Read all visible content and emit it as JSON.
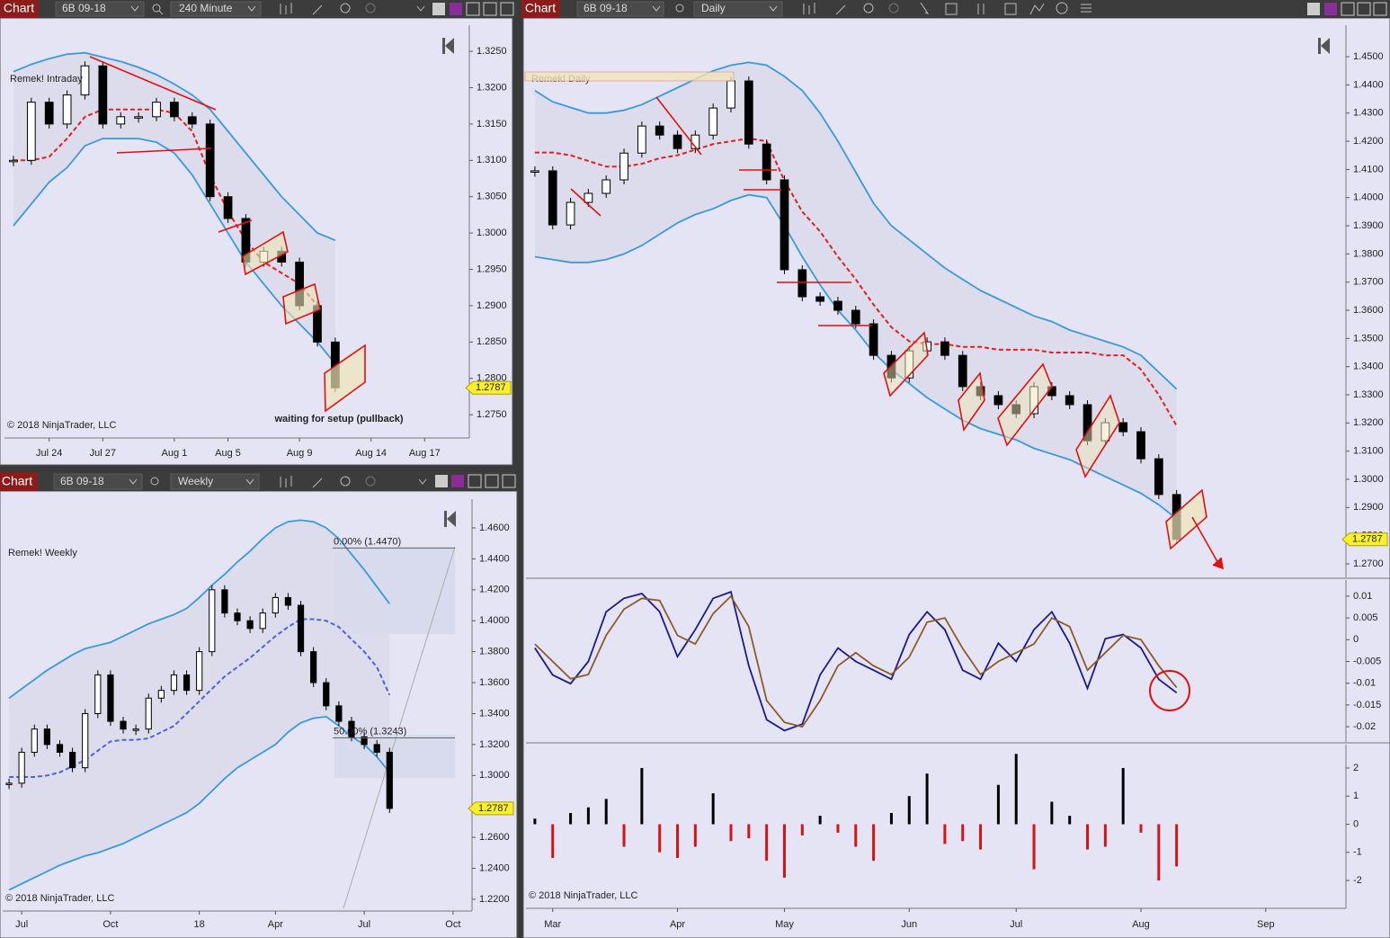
{
  "windows": [
    {
      "label": "Chart",
      "instrument": "6B 09-18",
      "interval": "240 Minute"
    },
    {
      "label": "Chart",
      "instrument": "6B 09-18",
      "interval": "Weekly"
    },
    {
      "label": "Chart",
      "instrument": "6B 09-18",
      "interval": "Daily"
    }
  ],
  "chart_data": [
    {
      "type": "candlestick",
      "title": "Remek! Intraday",
      "copyright": "© 2018 NinjaTrader, LLC",
      "annotation": "waiting for setup (pullback)",
      "categories": [
        null,
        null,
        "Jul 24",
        null,
        null,
        "Jul 27",
        null,
        null,
        null,
        "Aug 1",
        null,
        null,
        "Aug 5",
        null,
        null,
        null,
        "Aug 9",
        null,
        null,
        null,
        "Aug 14",
        null,
        null,
        "Aug 17",
        null,
        null
      ],
      "band_fill": "#d9d9ea",
      "last_price": 1.2787,
      "ylim": [
        1.2718,
        1.3286
      ],
      "yticks": [
        {
          "value": 1.275,
          "label": "1.2750"
        },
        {
          "value": 1.28,
          "label": "1.2800"
        },
        {
          "value": 1.285,
          "label": "1.2850"
        },
        {
          "value": 1.29,
          "label": "1.2900"
        },
        {
          "value": 1.295,
          "label": "1.2950"
        },
        {
          "value": 1.3,
          "label": "1.3000"
        },
        {
          "value": 1.305,
          "label": "1.3050"
        },
        {
          "value": 1.31,
          "label": "1.3100"
        },
        {
          "value": 1.315,
          "label": "1.3150"
        },
        {
          "value": 1.32,
          "label": "1.3200"
        },
        {
          "value": 1.325,
          "label": "1.3250"
        }
      ],
      "series": [
        {
          "style": "band",
          "color": "#3a9ad9",
          "values": [
            1.3222,
            1.3232,
            1.324,
            1.3246,
            1.3248,
            1.3242,
            1.3236,
            1.3228,
            1.3218,
            1.3205,
            1.319,
            1.317,
            1.314,
            1.311,
            1.308,
            1.305,
            1.3025,
            1.3,
            1.299,
            null,
            null,
            null,
            null,
            null,
            null,
            null
          ]
        },
        {
          "style": "band",
          "color": "#3a9ad9",
          "values": [
            1.301,
            1.304,
            1.307,
            1.309,
            1.312,
            1.313,
            1.313,
            1.313,
            1.3125,
            1.311,
            1.308,
            1.304,
            1.3,
            1.296,
            1.293,
            1.29,
            1.2875,
            1.285,
            1.282,
            null,
            null,
            null,
            null,
            null,
            null,
            null
          ]
        },
        {
          "style": "dashed",
          "color": "#e02020",
          "values": [
            1.31,
            1.31,
            1.3105,
            1.313,
            1.316,
            1.317,
            1.317,
            1.317,
            1.317,
            1.3165,
            1.314,
            1.308,
            1.303,
            1.299,
            1.296,
            1.2945,
            1.293,
            1.29,
            null,
            null,
            null,
            null,
            null,
            null,
            null,
            null
          ]
        },
        {
          "style": "candles",
          "color": "#000000",
          "values": [
            1.31,
            1.318,
            1.315,
            1.319,
            1.323,
            1.315,
            1.316,
            1.316,
            1.318,
            1.316,
            1.315,
            1.305,
            1.302,
            1.296,
            1.2975,
            1.296,
            1.29,
            1.285,
            1.2787,
            null,
            null,
            null,
            null,
            null,
            null,
            null
          ]
        }
      ]
    },
    {
      "type": "candlestick",
      "title": "Remek! Weekly",
      "copyright": "© 2018 NinjaTrader, LLC",
      "categories": [
        null,
        "Jul",
        null,
        null,
        null,
        null,
        null,
        null,
        "Oct",
        null,
        null,
        null,
        null,
        null,
        null,
        "18",
        null,
        null,
        null,
        null,
        null,
        "Apr",
        null,
        null,
        null,
        null,
        null,
        null,
        "Jul",
        null,
        null,
        null,
        null,
        null,
        null,
        "Oct",
        null
      ],
      "band_fill": "#d9d9ea",
      "last_price": 1.2787,
      "ylim": [
        1.2124,
        1.4786
      ],
      "fib_levels": [
        {
          "value": 1.447,
          "label": "0.00% (1.4470)"
        },
        {
          "value": 1.3243,
          "label": "50.00% (1.3243)"
        }
      ],
      "yticks": [
        {
          "value": 1.22,
          "label": "1.2200"
        },
        {
          "value": 1.24,
          "label": "1.2400"
        },
        {
          "value": 1.26,
          "label": "1.2600"
        },
        {
          "value": 1.28,
          "label": "1.2800"
        },
        {
          "value": 1.3,
          "label": "1.3000"
        },
        {
          "value": 1.32,
          "label": "1.3200"
        },
        {
          "value": 1.34,
          "label": "1.3400"
        },
        {
          "value": 1.36,
          "label": "1.3600"
        },
        {
          "value": 1.38,
          "label": "1.3800"
        },
        {
          "value": 1.4,
          "label": "1.4000"
        },
        {
          "value": 1.42,
          "label": "1.4200"
        },
        {
          "value": 1.44,
          "label": "1.4400"
        },
        {
          "value": 1.46,
          "label": "1.4600"
        }
      ],
      "series": [
        {
          "style": "band",
          "color": "#3a9ad9",
          "values": [
            1.35,
            1.356,
            1.362,
            1.368,
            1.373,
            1.378,
            1.382,
            1.384,
            1.386,
            1.39,
            1.394,
            1.398,
            1.401,
            1.404,
            1.408,
            1.415,
            1.423,
            1.43,
            1.438,
            1.445,
            1.453,
            1.46,
            1.464,
            1.465,
            1.464,
            1.46,
            1.453,
            1.443,
            1.433,
            1.422,
            1.411,
            null,
            null,
            null,
            null,
            null,
            null
          ]
        },
        {
          "style": "band",
          "color": "#3a9ad9",
          "values": [
            1.226,
            1.23,
            1.234,
            1.238,
            1.242,
            1.245,
            1.248,
            1.25,
            1.253,
            1.256,
            1.26,
            1.264,
            1.268,
            1.272,
            1.276,
            1.282,
            1.29,
            1.298,
            1.305,
            1.31,
            1.315,
            1.32,
            1.328,
            1.334,
            1.337,
            1.338,
            1.332,
            1.325,
            1.32,
            1.312,
            1.302,
            null,
            null,
            null,
            null,
            null,
            null
          ]
        },
        {
          "style": "dashed",
          "color": "#4a64d8",
          "values": [
            1.299,
            1.299,
            1.299,
            1.3,
            1.302,
            1.306,
            1.31,
            1.316,
            1.322,
            1.323,
            1.323,
            1.324,
            1.328,
            1.332,
            1.34,
            1.348,
            1.356,
            1.364,
            1.37,
            1.376,
            1.383,
            1.39,
            1.396,
            1.401,
            1.401,
            1.4,
            1.396,
            1.388,
            1.38,
            1.37,
            1.352,
            null,
            null,
            null,
            null,
            null,
            null
          ]
        },
        {
          "style": "candles",
          "color": "#000000",
          "values": [
            1.295,
            1.315,
            1.33,
            1.32,
            1.315,
            1.305,
            1.34,
            1.365,
            1.335,
            1.33,
            1.33,
            1.35,
            1.355,
            1.365,
            1.355,
            1.38,
            1.42,
            1.405,
            1.4,
            1.395,
            1.405,
            1.415,
            1.41,
            1.38,
            1.36,
            1.345,
            1.335,
            1.325,
            1.32,
            1.315,
            1.2787,
            null,
            null,
            null,
            null,
            null,
            null
          ]
        }
      ]
    },
    {
      "type": "candlestick",
      "title": "Remek! Daily",
      "band_fill": "#d9d9ea",
      "last_price": 1.2787,
      "ylim": [
        1.2652,
        1.4612
      ],
      "yticks": [
        {
          "value": 1.27,
          "label": "1.2700"
        },
        {
          "value": 1.28,
          "label": "1.2800"
        },
        {
          "value": 1.29,
          "label": "1.2900"
        },
        {
          "value": 1.3,
          "label": "1.3000"
        },
        {
          "value": 1.31,
          "label": "1.3100"
        },
        {
          "value": 1.32,
          "label": "1.3200"
        },
        {
          "value": 1.33,
          "label": "1.3300"
        },
        {
          "value": 1.34,
          "label": "1.3400"
        },
        {
          "value": 1.35,
          "label": "1.3500"
        },
        {
          "value": 1.36,
          "label": "1.3600"
        },
        {
          "value": 1.37,
          "label": "1.3700"
        },
        {
          "value": 1.38,
          "label": "1.3800"
        },
        {
          "value": 1.39,
          "label": "1.3900"
        },
        {
          "value": 1.4,
          "label": "1.4000"
        },
        {
          "value": 1.41,
          "label": "1.4100"
        },
        {
          "value": 1.42,
          "label": "1.4200"
        },
        {
          "value": 1.43,
          "label": "1.4300"
        },
        {
          "value": 1.44,
          "label": "1.4400"
        },
        {
          "value": 1.45,
          "label": "1.4500"
        }
      ],
      "series": [
        {
          "style": "band",
          "color": "#3a9ad9",
          "values": [
            1.438,
            1.434,
            1.432,
            1.43,
            1.43,
            1.431,
            1.433,
            1.436,
            1.439,
            1.442,
            1.445,
            1.447,
            1.448,
            1.447,
            1.443,
            1.438,
            1.43,
            1.42,
            1.409,
            1.398,
            1.39,
            1.385,
            1.38,
            1.375,
            1.371,
            1.367,
            1.364,
            1.361,
            1.358,
            1.356,
            1.353,
            1.351,
            1.349,
            1.347,
            1.344,
            1.338,
            1.332,
            null,
            null,
            null,
            null,
            null,
            null,
            null,
            null,
            null
          ]
        },
        {
          "style": "band",
          "color": "#3a9ad9",
          "values": [
            1.379,
            1.378,
            1.377,
            1.377,
            1.378,
            1.38,
            1.383,
            1.387,
            1.391,
            1.394,
            1.396,
            1.399,
            1.401,
            1.4,
            1.39,
            1.379,
            1.369,
            1.36,
            1.353,
            1.345,
            1.339,
            1.334,
            1.329,
            1.325,
            1.321,
            1.318,
            1.316,
            1.314,
            1.311,
            1.309,
            1.307,
            1.304,
            1.301,
            1.298,
            1.295,
            1.291,
            1.286,
            null,
            null,
            null,
            null,
            null,
            null,
            null,
            null,
            null
          ]
        },
        {
          "style": "dashed",
          "color": "#e02020",
          "values": [
            1.416,
            1.416,
            1.415,
            1.413,
            1.411,
            1.411,
            1.412,
            1.414,
            1.415,
            1.417,
            1.419,
            1.42,
            1.421,
            1.42,
            1.406,
            1.395,
            1.388,
            1.379,
            1.371,
            1.362,
            1.354,
            1.349,
            1.348,
            1.348,
            1.347,
            1.347,
            1.346,
            1.346,
            1.346,
            1.345,
            1.345,
            1.345,
            1.344,
            1.344,
            1.339,
            1.33,
            1.319,
            null,
            null,
            null,
            null,
            null,
            null,
            null,
            null,
            null
          ]
        },
        {
          "style": "candles",
          "color": "#000000",
          "values": [
            1.4095,
            1.3903,
            1.3983,
            1.4015,
            1.4063,
            1.4158,
            1.4254,
            1.4222,
            1.4174,
            1.4222,
            1.4318,
            1.4414,
            1.419,
            1.4063,
            1.3744,
            1.3648,
            1.3632,
            1.36,
            1.3552,
            1.344,
            1.336,
            1.3456,
            1.3488,
            1.344,
            1.3329,
            1.3297,
            1.3265,
            1.3233,
            1.3329,
            1.3297,
            1.3265,
            1.3137,
            1.3201,
            1.3169,
            1.3073,
            1.2946,
            1.2787,
            null,
            null,
            null,
            null,
            null,
            null,
            null,
            null,
            null
          ]
        }
      ]
    },
    {
      "type": "line",
      "ylim": [
        -0.0235,
        0.0137
      ],
      "yticks": [
        0.01,
        0.005,
        0,
        -0.005,
        -0.01,
        -0.015,
        -0.02
      ],
      "series": [
        {
          "style": "line",
          "color": "#1a1a8c",
          "values": [
            -0.0019,
            -0.0081,
            -0.0101,
            -0.005,
            0.0064,
            0.0095,
            0.0106,
            0.0064,
            -0.0039,
            0.0023,
            0.0095,
            0.011,
            -0.006,
            -0.0184,
            -0.0209,
            -0.0194,
            -0.0081,
            -0.0019,
            -0.005,
            -0.007,
            -0.0091,
            0.0012,
            0.0064,
            0.0023,
            -0.007,
            -0.0091,
            -0.0008,
            -0.005,
            0.0023,
            0.0064,
            -0.0008,
            -0.0112,
            0.0002,
            0.0012,
            -0.0019,
            -0.0091,
            -0.0122,
            null,
            null,
            null,
            null,
            null,
            null,
            null,
            null,
            null
          ]
        },
        {
          "style": "line",
          "color": "#8b5a2b",
          "values": [
            -0.001,
            -0.005,
            -0.009,
            -0.008,
            0.001,
            0.007,
            0.0095,
            0.009,
            0.001,
            -0.001,
            0.006,
            0.01,
            0.003,
            -0.014,
            -0.019,
            -0.02,
            -0.014,
            -0.006,
            -0.003,
            -0.006,
            -0.008,
            -0.004,
            0.004,
            0.005,
            -0.002,
            -0.008,
            -0.005,
            -0.003,
            -0.001,
            0.005,
            0.003,
            -0.007,
            -0.003,
            0.001,
            0,
            -0.006,
            -0.011,
            null,
            null,
            null,
            null,
            null,
            null,
            null,
            null,
            null
          ]
        }
      ]
    },
    {
      "type": "bar",
      "copyright": "© 2018 NinjaTrader, LLC",
      "color": "#000000",
      "negative_color": "#d41414",
      "categories": [
        null,
        "Mar",
        null,
        null,
        null,
        null,
        null,
        null,
        "Apr",
        null,
        null,
        null,
        null,
        null,
        "May",
        null,
        null,
        null,
        null,
        null,
        null,
        "Jun",
        null,
        null,
        null,
        null,
        null,
        "Jul",
        null,
        null,
        null,
        null,
        null,
        null,
        "Aug",
        null,
        null,
        null,
        null,
        null,
        null,
        "Sep",
        null,
        null,
        null,
        null
      ],
      "values": [
        0.2,
        -1.2,
        0.4,
        0.6,
        0.9,
        -0.8,
        2,
        -1,
        -1.2,
        -0.8,
        1.1,
        -0.6,
        -0.5,
        -1.3,
        -1.9,
        -0.4,
        0.3,
        -0.3,
        -0.8,
        -1.3,
        0.4,
        1,
        1.8,
        -0.7,
        -0.6,
        -0.9,
        1.4,
        2.5,
        -1.6,
        0.8,
        0.3,
        -0.9,
        -0.8,
        2,
        -0.3,
        -2,
        -1.5,
        null,
        null,
        null,
        null,
        null,
        null,
        null,
        null,
        null
      ],
      "ylim": [
        -2.99,
        2.83
      ],
      "yticks": [
        2,
        1,
        0,
        -1,
        -2
      ]
    }
  ]
}
